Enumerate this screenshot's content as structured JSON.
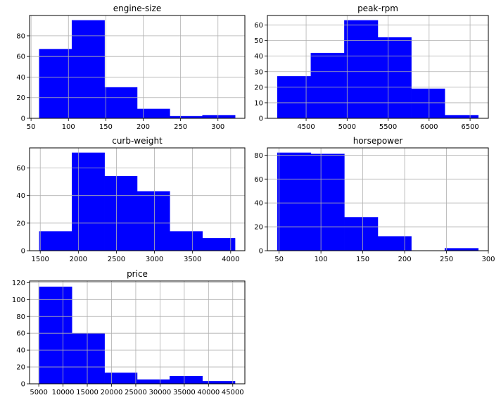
{
  "colors": {
    "bar": "#0000ff",
    "grid": "#b0b0b0",
    "axis": "#000000"
  },
  "chart_data": [
    {
      "type": "bar",
      "title": "engine-size",
      "bin_edges": [
        61,
        104.67,
        148.33,
        192,
        235.67,
        279.33,
        323
      ],
      "values": [
        67,
        95,
        30,
        9,
        2,
        3
      ],
      "xticks": [
        50,
        100,
        150,
        200,
        250,
        300
      ],
      "xlim": [
        48,
        336
      ],
      "yticks": [
        0,
        20,
        40,
        60,
        80
      ],
      "ylim": [
        0,
        99.75
      ],
      "grid": true
    },
    {
      "type": "bar",
      "title": "peak-rpm",
      "bin_edges": [
        4150,
        4558.33,
        4966.67,
        5375,
        5783.33,
        6191.67,
        6600
      ],
      "values": [
        27,
        42,
        63,
        52,
        19,
        2
      ],
      "xticks": [
        4500,
        5000,
        5500,
        6000,
        6500
      ],
      "xlim": [
        4027.5,
        6722.5
      ],
      "yticks": [
        0,
        10,
        20,
        30,
        40,
        50,
        60
      ],
      "ylim": [
        0,
        66.15
      ],
      "grid": true
    },
    {
      "type": "bar",
      "title": "curb-weight",
      "bin_edges": [
        1488,
        1916.33,
        2344.67,
        2773,
        3201.33,
        3629.67,
        4058
      ],
      "values": [
        14,
        71,
        54,
        43,
        14,
        9
      ],
      "xticks": [
        1500,
        2000,
        2500,
        3000,
        3500,
        4000
      ],
      "xlim": [
        1359.5,
        4186.5
      ],
      "yticks": [
        0,
        20,
        40,
        60
      ],
      "ylim": [
        0,
        74.55
      ],
      "grid": true
    },
    {
      "type": "bar",
      "title": "horsepower",
      "bin_edges": [
        48,
        88,
        128,
        168,
        208,
        248,
        288
      ],
      "values": [
        82,
        81,
        28,
        12,
        0,
        2
      ],
      "xticks": [
        50,
        100,
        150,
        200,
        250,
        300
      ],
      "xlim": [
        36,
        300
      ],
      "yticks": [
        0,
        20,
        40,
        60,
        80
      ],
      "ylim": [
        0,
        86.1
      ],
      "grid": true
    },
    {
      "type": "bar",
      "title": "price",
      "bin_edges": [
        5118,
        11844.33,
        18570.67,
        25297,
        32023.33,
        38749.67,
        45476
      ],
      "values": [
        115,
        60,
        13,
        5,
        9,
        3
      ],
      "xticks": [
        5000,
        10000,
        15000,
        20000,
        25000,
        30000,
        35000,
        40000,
        45000
      ],
      "xlim": [
        3100,
        47500
      ],
      "yticks": [
        0,
        20,
        40,
        60,
        80,
        100,
        120
      ],
      "ylim": [
        0,
        122
      ],
      "grid": true
    }
  ]
}
